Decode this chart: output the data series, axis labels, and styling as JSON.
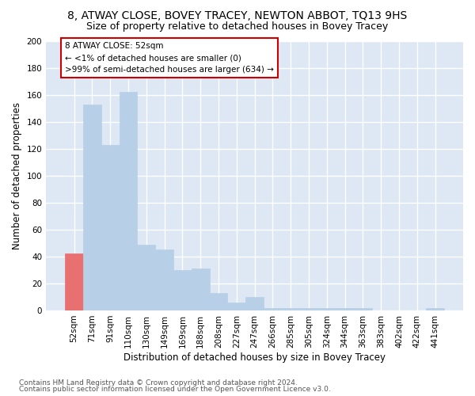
{
  "title": "8, ATWAY CLOSE, BOVEY TRACEY, NEWTON ABBOT, TQ13 9HS",
  "subtitle": "Size of property relative to detached houses in Bovey Tracey",
  "xlabel": "Distribution of detached houses by size in Bovey Tracey",
  "ylabel": "Number of detached properties",
  "categories": [
    "52sqm",
    "71sqm",
    "91sqm",
    "110sqm",
    "130sqm",
    "149sqm",
    "169sqm",
    "188sqm",
    "208sqm",
    "227sqm",
    "247sqm",
    "266sqm",
    "285sqm",
    "305sqm",
    "324sqm",
    "344sqm",
    "363sqm",
    "383sqm",
    "402sqm",
    "422sqm",
    "441sqm"
  ],
  "values": [
    42,
    153,
    123,
    162,
    49,
    45,
    30,
    31,
    13,
    6,
    10,
    2,
    2,
    2,
    2,
    2,
    2,
    0,
    0,
    0,
    2
  ],
  "bar_color": "#b8cfe8",
  "bar_edge_color": "#b8cfe8",
  "highlight_bar_index": 0,
  "highlight_bar_color": "#e87070",
  "highlight_bar_edge_color": "#e87070",
  "ylim": [
    0,
    200
  ],
  "yticks": [
    0,
    20,
    40,
    60,
    80,
    100,
    120,
    140,
    160,
    180,
    200
  ],
  "annotation_text_line1": "8 ATWAY CLOSE: 52sqm",
  "annotation_text_line2": "← <1% of detached houses are smaller (0)",
  "annotation_text_line3": ">99% of semi-detached houses are larger (634) →",
  "annotation_box_color": "white",
  "annotation_box_edge_color": "#cc0000",
  "footer_line1": "Contains HM Land Registry data © Crown copyright and database right 2024.",
  "footer_line2": "Contains public sector information licensed under the Open Government Licence v3.0.",
  "background_color": "#dde8f4",
  "grid_color": "white",
  "title_fontsize": 10,
  "subtitle_fontsize": 9,
  "axis_label_fontsize": 8.5,
  "tick_fontsize": 7.5,
  "annotation_fontsize": 7.5,
  "footer_fontsize": 6.5
}
